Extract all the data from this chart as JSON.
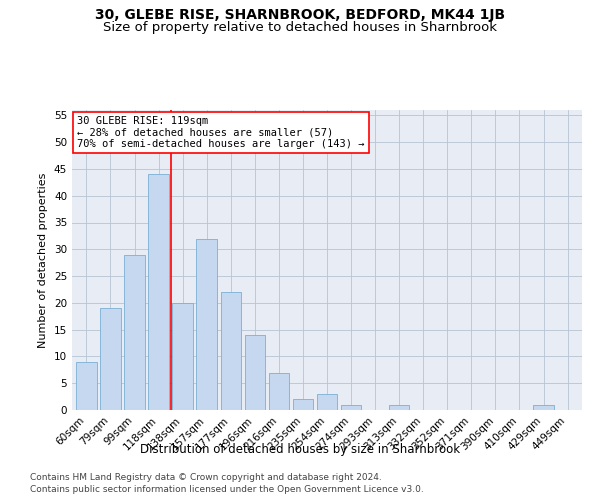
{
  "title": "30, GLEBE RISE, SHARNBROOK, BEDFORD, MK44 1JB",
  "subtitle": "Size of property relative to detached houses in Sharnbrook",
  "xlabel": "Distribution of detached houses by size in Sharnbrook",
  "ylabel": "Number of detached properties",
  "footnote1": "Contains HM Land Registry data © Crown copyright and database right 2024.",
  "footnote2": "Contains public sector information licensed under the Open Government Licence v3.0.",
  "categories": [
    "60sqm",
    "79sqm",
    "99sqm",
    "118sqm",
    "138sqm",
    "157sqm",
    "177sqm",
    "196sqm",
    "216sqm",
    "235sqm",
    "254sqm",
    "274sqm",
    "293sqm",
    "313sqm",
    "332sqm",
    "352sqm",
    "371sqm",
    "390sqm",
    "410sqm",
    "429sqm",
    "449sqm"
  ],
  "values": [
    9,
    19,
    29,
    44,
    20,
    32,
    22,
    14,
    7,
    2,
    3,
    1,
    0,
    1,
    0,
    0,
    0,
    0,
    0,
    1,
    0
  ],
  "bar_color": "#c5d8f0",
  "bar_edge_color": "#7bafd4",
  "grid_color": "#b8c4d4",
  "background_color": "#e8ecf4",
  "property_line_x": 3.5,
  "property_line_color": "red",
  "annotation_text": "30 GLEBE RISE: 119sqm\n← 28% of detached houses are smaller (57)\n70% of semi-detached houses are larger (143) →",
  "annotation_box_color": "white",
  "annotation_box_edge": "red",
  "ylim": [
    0,
    56
  ],
  "yticks": [
    0,
    5,
    10,
    15,
    20,
    25,
    30,
    35,
    40,
    45,
    50,
    55
  ],
  "title_fontsize": 10,
  "subtitle_fontsize": 9.5,
  "axis_label_fontsize": 8.5,
  "ylabel_fontsize": 8,
  "tick_fontsize": 7.5,
  "annotation_fontsize": 7.5,
  "footnote_fontsize": 6.5
}
